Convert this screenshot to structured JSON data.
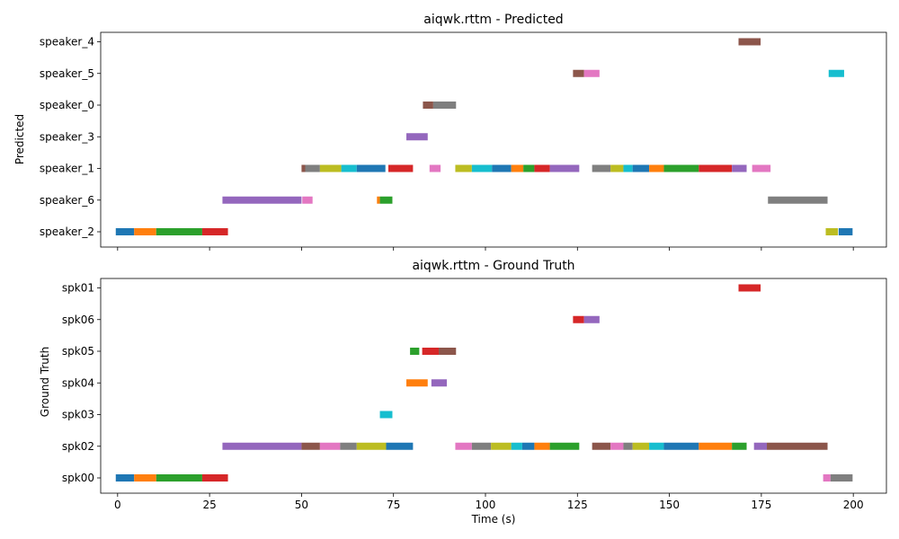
{
  "chart_data": [
    {
      "type": "timeline",
      "title": "aiqwk.rttm - Predicted",
      "ylabel": "Predicted",
      "xlabel": "",
      "xlim": [
        -4.6,
        209
      ],
      "show_x_tick_labels": false,
      "x_ticks": [
        0,
        25,
        50,
        75,
        100,
        125,
        150,
        175,
        200
      ],
      "rows": [
        "speaker_2",
        "speaker_6",
        "speaker_1",
        "speaker_3",
        "speaker_0",
        "speaker_5",
        "speaker_4"
      ],
      "segments": [
        {
          "row": "speaker_2",
          "start": -0.5,
          "end": 4.5,
          "color": "#1f77b4"
        },
        {
          "row": "speaker_2",
          "start": 4.5,
          "end": 10.5,
          "color": "#ff7f0e"
        },
        {
          "row": "speaker_2",
          "start": 10.5,
          "end": 23.0,
          "color": "#2ca02c"
        },
        {
          "row": "speaker_2",
          "start": 23.0,
          "end": 30.0,
          "color": "#d62728"
        },
        {
          "row": "speaker_2",
          "start": 192.5,
          "end": 195.8,
          "color": "#bcbd22"
        },
        {
          "row": "speaker_2",
          "start": 196.0,
          "end": 199.8,
          "color": "#1f77b4"
        },
        {
          "row": "speaker_6",
          "start": 28.5,
          "end": 50.0,
          "color": "#9467bd"
        },
        {
          "row": "speaker_6",
          "start": 50.2,
          "end": 53.0,
          "color": "#e377c2"
        },
        {
          "row": "speaker_6",
          "start": 70.5,
          "end": 71.3,
          "color": "#ff7f0e"
        },
        {
          "row": "speaker_6",
          "start": 71.3,
          "end": 74.7,
          "color": "#2ca02c"
        },
        {
          "row": "speaker_6",
          "start": 176.8,
          "end": 193.0,
          "color": "#7f7f7f"
        },
        {
          "row": "speaker_1",
          "start": 50.0,
          "end": 51.0,
          "color": "#8c564b"
        },
        {
          "row": "speaker_1",
          "start": 51.0,
          "end": 55.0,
          "color": "#7f7f7f"
        },
        {
          "row": "speaker_1",
          "start": 55.0,
          "end": 60.8,
          "color": "#bcbd22"
        },
        {
          "row": "speaker_1",
          "start": 60.8,
          "end": 65.0,
          "color": "#17becf"
        },
        {
          "row": "speaker_1",
          "start": 65.0,
          "end": 72.8,
          "color": "#1f77b4"
        },
        {
          "row": "speaker_1",
          "start": 73.6,
          "end": 80.3,
          "color": "#d62728"
        },
        {
          "row": "speaker_1",
          "start": 84.8,
          "end": 87.8,
          "color": "#e377c2"
        },
        {
          "row": "speaker_1",
          "start": 91.8,
          "end": 96.3,
          "color": "#bcbd22"
        },
        {
          "row": "speaker_1",
          "start": 96.3,
          "end": 101.8,
          "color": "#17becf"
        },
        {
          "row": "speaker_1",
          "start": 101.8,
          "end": 107.0,
          "color": "#1f77b4"
        },
        {
          "row": "speaker_1",
          "start": 107.0,
          "end": 110.3,
          "color": "#ff7f0e"
        },
        {
          "row": "speaker_1",
          "start": 110.3,
          "end": 113.3,
          "color": "#2ca02c"
        },
        {
          "row": "speaker_1",
          "start": 113.3,
          "end": 117.5,
          "color": "#d62728"
        },
        {
          "row": "speaker_1",
          "start": 117.5,
          "end": 125.5,
          "color": "#9467bd"
        },
        {
          "row": "speaker_1",
          "start": 129.0,
          "end": 134.0,
          "color": "#7f7f7f"
        },
        {
          "row": "speaker_1",
          "start": 134.0,
          "end": 137.5,
          "color": "#bcbd22"
        },
        {
          "row": "speaker_1",
          "start": 137.5,
          "end": 140.0,
          "color": "#17becf"
        },
        {
          "row": "speaker_1",
          "start": 140.0,
          "end": 144.5,
          "color": "#1f77b4"
        },
        {
          "row": "speaker_1",
          "start": 144.5,
          "end": 148.5,
          "color": "#ff7f0e"
        },
        {
          "row": "speaker_1",
          "start": 148.5,
          "end": 158.0,
          "color": "#2ca02c"
        },
        {
          "row": "speaker_1",
          "start": 158.0,
          "end": 167.0,
          "color": "#d62728"
        },
        {
          "row": "speaker_1",
          "start": 167.0,
          "end": 171.0,
          "color": "#9467bd"
        },
        {
          "row": "speaker_1",
          "start": 172.5,
          "end": 177.5,
          "color": "#e377c2"
        },
        {
          "row": "speaker_3",
          "start": 78.5,
          "end": 84.3,
          "color": "#9467bd"
        },
        {
          "row": "speaker_0",
          "start": 83.0,
          "end": 85.8,
          "color": "#8c564b"
        },
        {
          "row": "speaker_0",
          "start": 85.8,
          "end": 92.0,
          "color": "#7f7f7f"
        },
        {
          "row": "speaker_5",
          "start": 123.8,
          "end": 126.8,
          "color": "#8c564b"
        },
        {
          "row": "speaker_5",
          "start": 126.8,
          "end": 131.0,
          "color": "#e377c2"
        },
        {
          "row": "speaker_5",
          "start": 193.3,
          "end": 197.5,
          "color": "#17becf"
        },
        {
          "row": "speaker_4",
          "start": 168.8,
          "end": 174.8,
          "color": "#8c564b"
        }
      ]
    },
    {
      "type": "timeline",
      "title": "aiqwk.rttm - Ground Truth",
      "ylabel": "Ground Truth",
      "xlabel": "Time (s)",
      "xlim": [
        -4.6,
        209
      ],
      "show_x_tick_labels": true,
      "x_ticks": [
        0,
        25,
        50,
        75,
        100,
        125,
        150,
        175,
        200
      ],
      "rows": [
        "spk00",
        "spk02",
        "spk03",
        "spk04",
        "spk05",
        "spk06",
        "spk01"
      ],
      "segments": [
        {
          "row": "spk00",
          "start": -0.5,
          "end": 4.5,
          "color": "#1f77b4"
        },
        {
          "row": "spk00",
          "start": 4.5,
          "end": 10.5,
          "color": "#ff7f0e"
        },
        {
          "row": "spk00",
          "start": 10.5,
          "end": 23.0,
          "color": "#2ca02c"
        },
        {
          "row": "spk00",
          "start": 23.0,
          "end": 30.0,
          "color": "#d62728"
        },
        {
          "row": "spk00",
          "start": 191.8,
          "end": 193.8,
          "color": "#e377c2"
        },
        {
          "row": "spk00",
          "start": 193.8,
          "end": 199.8,
          "color": "#7f7f7f"
        },
        {
          "row": "spk02",
          "start": 28.5,
          "end": 50.0,
          "color": "#9467bd"
        },
        {
          "row": "spk02",
          "start": 50.0,
          "end": 55.0,
          "color": "#8c564b"
        },
        {
          "row": "spk02",
          "start": 55.0,
          "end": 60.5,
          "color": "#e377c2"
        },
        {
          "row": "spk02",
          "start": 60.5,
          "end": 65.0,
          "color": "#7f7f7f"
        },
        {
          "row": "spk02",
          "start": 65.0,
          "end": 73.0,
          "color": "#bcbd22"
        },
        {
          "row": "spk02",
          "start": 73.0,
          "end": 80.3,
          "color": "#1f77b4"
        },
        {
          "row": "spk02",
          "start": 91.8,
          "end": 96.3,
          "color": "#e377c2"
        },
        {
          "row": "spk02",
          "start": 96.3,
          "end": 101.5,
          "color": "#7f7f7f"
        },
        {
          "row": "spk02",
          "start": 101.5,
          "end": 107.0,
          "color": "#bcbd22"
        },
        {
          "row": "spk02",
          "start": 107.0,
          "end": 110.0,
          "color": "#17becf"
        },
        {
          "row": "spk02",
          "start": 110.0,
          "end": 113.3,
          "color": "#1f77b4"
        },
        {
          "row": "spk02",
          "start": 113.3,
          "end": 117.5,
          "color": "#ff7f0e"
        },
        {
          "row": "spk02",
          "start": 117.5,
          "end": 125.5,
          "color": "#2ca02c"
        },
        {
          "row": "spk02",
          "start": 129.0,
          "end": 134.0,
          "color": "#8c564b"
        },
        {
          "row": "spk02",
          "start": 134.0,
          "end": 137.5,
          "color": "#e377c2"
        },
        {
          "row": "spk02",
          "start": 137.5,
          "end": 140.0,
          "color": "#7f7f7f"
        },
        {
          "row": "spk02",
          "start": 140.0,
          "end": 144.5,
          "color": "#bcbd22"
        },
        {
          "row": "spk02",
          "start": 144.5,
          "end": 148.5,
          "color": "#17becf"
        },
        {
          "row": "spk02",
          "start": 148.5,
          "end": 158.0,
          "color": "#1f77b4"
        },
        {
          "row": "spk02",
          "start": 158.0,
          "end": 167.0,
          "color": "#ff7f0e"
        },
        {
          "row": "spk02",
          "start": 167.0,
          "end": 171.0,
          "color": "#2ca02c"
        },
        {
          "row": "spk02",
          "start": 173.0,
          "end": 176.5,
          "color": "#9467bd"
        },
        {
          "row": "spk02",
          "start": 176.5,
          "end": 193.0,
          "color": "#8c564b"
        },
        {
          "row": "spk03",
          "start": 71.3,
          "end": 74.7,
          "color": "#17becf"
        },
        {
          "row": "spk04",
          "start": 78.5,
          "end": 84.3,
          "color": "#ff7f0e"
        },
        {
          "row": "spk04",
          "start": 85.3,
          "end": 89.5,
          "color": "#9467bd"
        },
        {
          "row": "spk05",
          "start": 79.5,
          "end": 82.0,
          "color": "#2ca02c"
        },
        {
          "row": "spk05",
          "start": 82.8,
          "end": 87.3,
          "color": "#d62728"
        },
        {
          "row": "spk05",
          "start": 87.3,
          "end": 92.0,
          "color": "#8c564b"
        },
        {
          "row": "spk06",
          "start": 123.8,
          "end": 126.8,
          "color": "#d62728"
        },
        {
          "row": "spk06",
          "start": 126.8,
          "end": 131.0,
          "color": "#9467bd"
        },
        {
          "row": "spk01",
          "start": 168.8,
          "end": 174.8,
          "color": "#d62728"
        }
      ]
    }
  ]
}
